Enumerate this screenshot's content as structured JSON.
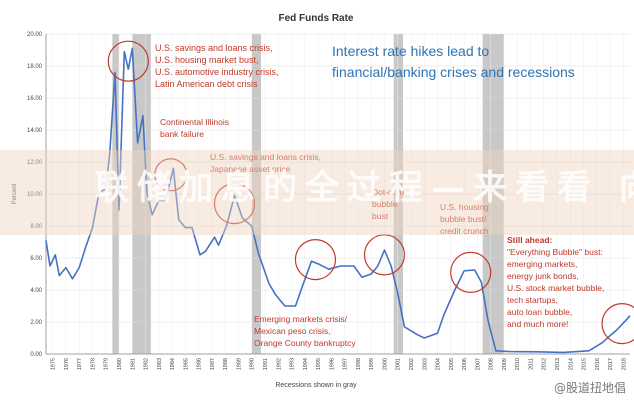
{
  "chart_data": {
    "type": "line",
    "title": "Fed Funds Rate",
    "headline": [
      "Interest rate hikes lead to",
      "financial/banking crises and recessions"
    ],
    "ylabel": "Percent",
    "xlabel": "Recessions shown in gray",
    "ylim": [
      0,
      20
    ],
    "xlim": [
      1975,
      2019
    ],
    "yticks": [
      "0.00",
      "2.00",
      "4.00",
      "6.00",
      "8.00",
      "10.00",
      "12.00",
      "14.00",
      "16.00",
      "18.00",
      "20.00"
    ],
    "xticks": [
      "1975",
      "1976",
      "1977",
      "1978",
      "1979",
      "1980",
      "1981",
      "1982",
      "1983",
      "1984",
      "1985",
      "1986",
      "1987",
      "1988",
      "1989",
      "1990",
      "1991",
      "1992",
      "1993",
      "1994",
      "1995",
      "1996",
      "1997",
      "1998",
      "1999",
      "2000",
      "2001",
      "2002",
      "2003",
      "2004",
      "2005",
      "2006",
      "2007",
      "2008",
      "2009",
      "2010",
      "2011",
      "2012",
      "2013",
      "2014",
      "2015",
      "2016",
      "2017",
      "2018"
    ],
    "grid": true,
    "recessions": [
      [
        1980.0,
        1980.5
      ],
      [
        1981.5,
        1982.9
      ],
      [
        1990.5,
        1991.2
      ],
      [
        2001.2,
        2001.9
      ],
      [
        2007.9,
        2009.5
      ]
    ],
    "series": [
      {
        "color": "#4472c4",
        "points": [
          [
            1975.0,
            7.1
          ],
          [
            1975.3,
            5.5
          ],
          [
            1975.7,
            6.2
          ],
          [
            1976.0,
            4.9
          ],
          [
            1976.5,
            5.4
          ],
          [
            1977.0,
            4.7
          ],
          [
            1977.5,
            5.4
          ],
          [
            1978.0,
            6.7
          ],
          [
            1978.5,
            7.9
          ],
          [
            1979.0,
            10.1
          ],
          [
            1979.5,
            10.3
          ],
          [
            1979.8,
            12.5
          ],
          [
            1980.2,
            17.6
          ],
          [
            1980.5,
            9.0
          ],
          [
            1980.9,
            18.9
          ],
          [
            1981.2,
            17.8
          ],
          [
            1981.5,
            19.1
          ],
          [
            1981.9,
            13.2
          ],
          [
            1982.3,
            14.9
          ],
          [
            1982.6,
            10.1
          ],
          [
            1983.0,
            8.7
          ],
          [
            1983.5,
            9.6
          ],
          [
            1984.0,
            9.6
          ],
          [
            1984.6,
            11.6
          ],
          [
            1985.0,
            8.4
          ],
          [
            1985.5,
            7.9
          ],
          [
            1986.0,
            7.9
          ],
          [
            1986.6,
            6.2
          ],
          [
            1987.0,
            6.4
          ],
          [
            1987.7,
            7.3
          ],
          [
            1988.0,
            6.8
          ],
          [
            1988.6,
            8.0
          ],
          [
            1989.2,
            9.9
          ],
          [
            1989.8,
            8.5
          ],
          [
            1990.5,
            8.0
          ],
          [
            1991.0,
            6.3
          ],
          [
            1991.8,
            4.4
          ],
          [
            1992.3,
            3.7
          ],
          [
            1993.0,
            3.0
          ],
          [
            1993.8,
            3.0
          ],
          [
            1994.3,
            4.2
          ],
          [
            1995.0,
            5.8
          ],
          [
            1995.6,
            5.6
          ],
          [
            1996.3,
            5.3
          ],
          [
            1997.2,
            5.5
          ],
          [
            1998.2,
            5.5
          ],
          [
            1998.8,
            4.8
          ],
          [
            1999.5,
            5.0
          ],
          [
            2000.0,
            5.5
          ],
          [
            2000.5,
            6.5
          ],
          [
            2001.0,
            5.5
          ],
          [
            2001.5,
            3.8
          ],
          [
            2002.0,
            1.7
          ],
          [
            2003.0,
            1.2
          ],
          [
            2003.5,
            1.0
          ],
          [
            2004.5,
            1.3
          ],
          [
            2005.0,
            2.5
          ],
          [
            2005.8,
            4.0
          ],
          [
            2006.5,
            5.2
          ],
          [
            2007.3,
            5.25
          ],
          [
            2007.8,
            4.5
          ],
          [
            2008.3,
            2.1
          ],
          [
            2008.9,
            0.2
          ],
          [
            2010.0,
            0.15
          ],
          [
            2012.0,
            0.14
          ],
          [
            2014.0,
            0.1
          ],
          [
            2015.9,
            0.2
          ],
          [
            2016.9,
            0.7
          ],
          [
            2017.5,
            1.15
          ],
          [
            2018.0,
            1.5
          ],
          [
            2018.8,
            2.2
          ],
          [
            2019.0,
            2.4
          ]
        ]
      }
    ],
    "highlight_circles": [
      [
        1981.2,
        18.3
      ],
      [
        1984.4,
        11.2
      ],
      [
        1989.2,
        9.4
      ],
      [
        1995.3,
        5.9
      ],
      [
        2000.5,
        6.2
      ],
      [
        2007.0,
        5.1
      ],
      [
        2018.4,
        1.9
      ]
    ],
    "annotations": [
      {
        "lines": [
          "U.S. savings and loans crisis,",
          "U.S. housing market bust,",
          "U.S. automotive industry crisis,",
          "Latin American debt crisis"
        ]
      },
      {
        "lines": [
          "Continental Illinois",
          "bank failure"
        ]
      },
      {
        "lines": [
          "U.S. savings and loans crisis,",
          "Japanese asset price"
        ]
      },
      {
        "lines": [
          "Dot-com",
          "bubble",
          "bust"
        ]
      },
      {
        "lines": [
          "U.S. housing",
          "bubble bust/",
          "credit crunch"
        ]
      },
      {
        "lines": [
          "Emerging markets crisis/",
          "Mexican peso crisis,",
          "Orange County bankruptcy"
        ]
      },
      {
        "lines": [
          "Still ahead:",
          "\"Everything Bubble\" bust:",
          "emerging markets,",
          "energy junk bonds,",
          "U.S. stock market bubble,",
          "tech startups,",
          "auto loan bubble,",
          "and much more!"
        ]
      }
    ]
  },
  "overlay": {
    "text": "联储加息的全过程—来看看 向"
  },
  "watermark": {
    "text": "@股道扭地倡"
  }
}
